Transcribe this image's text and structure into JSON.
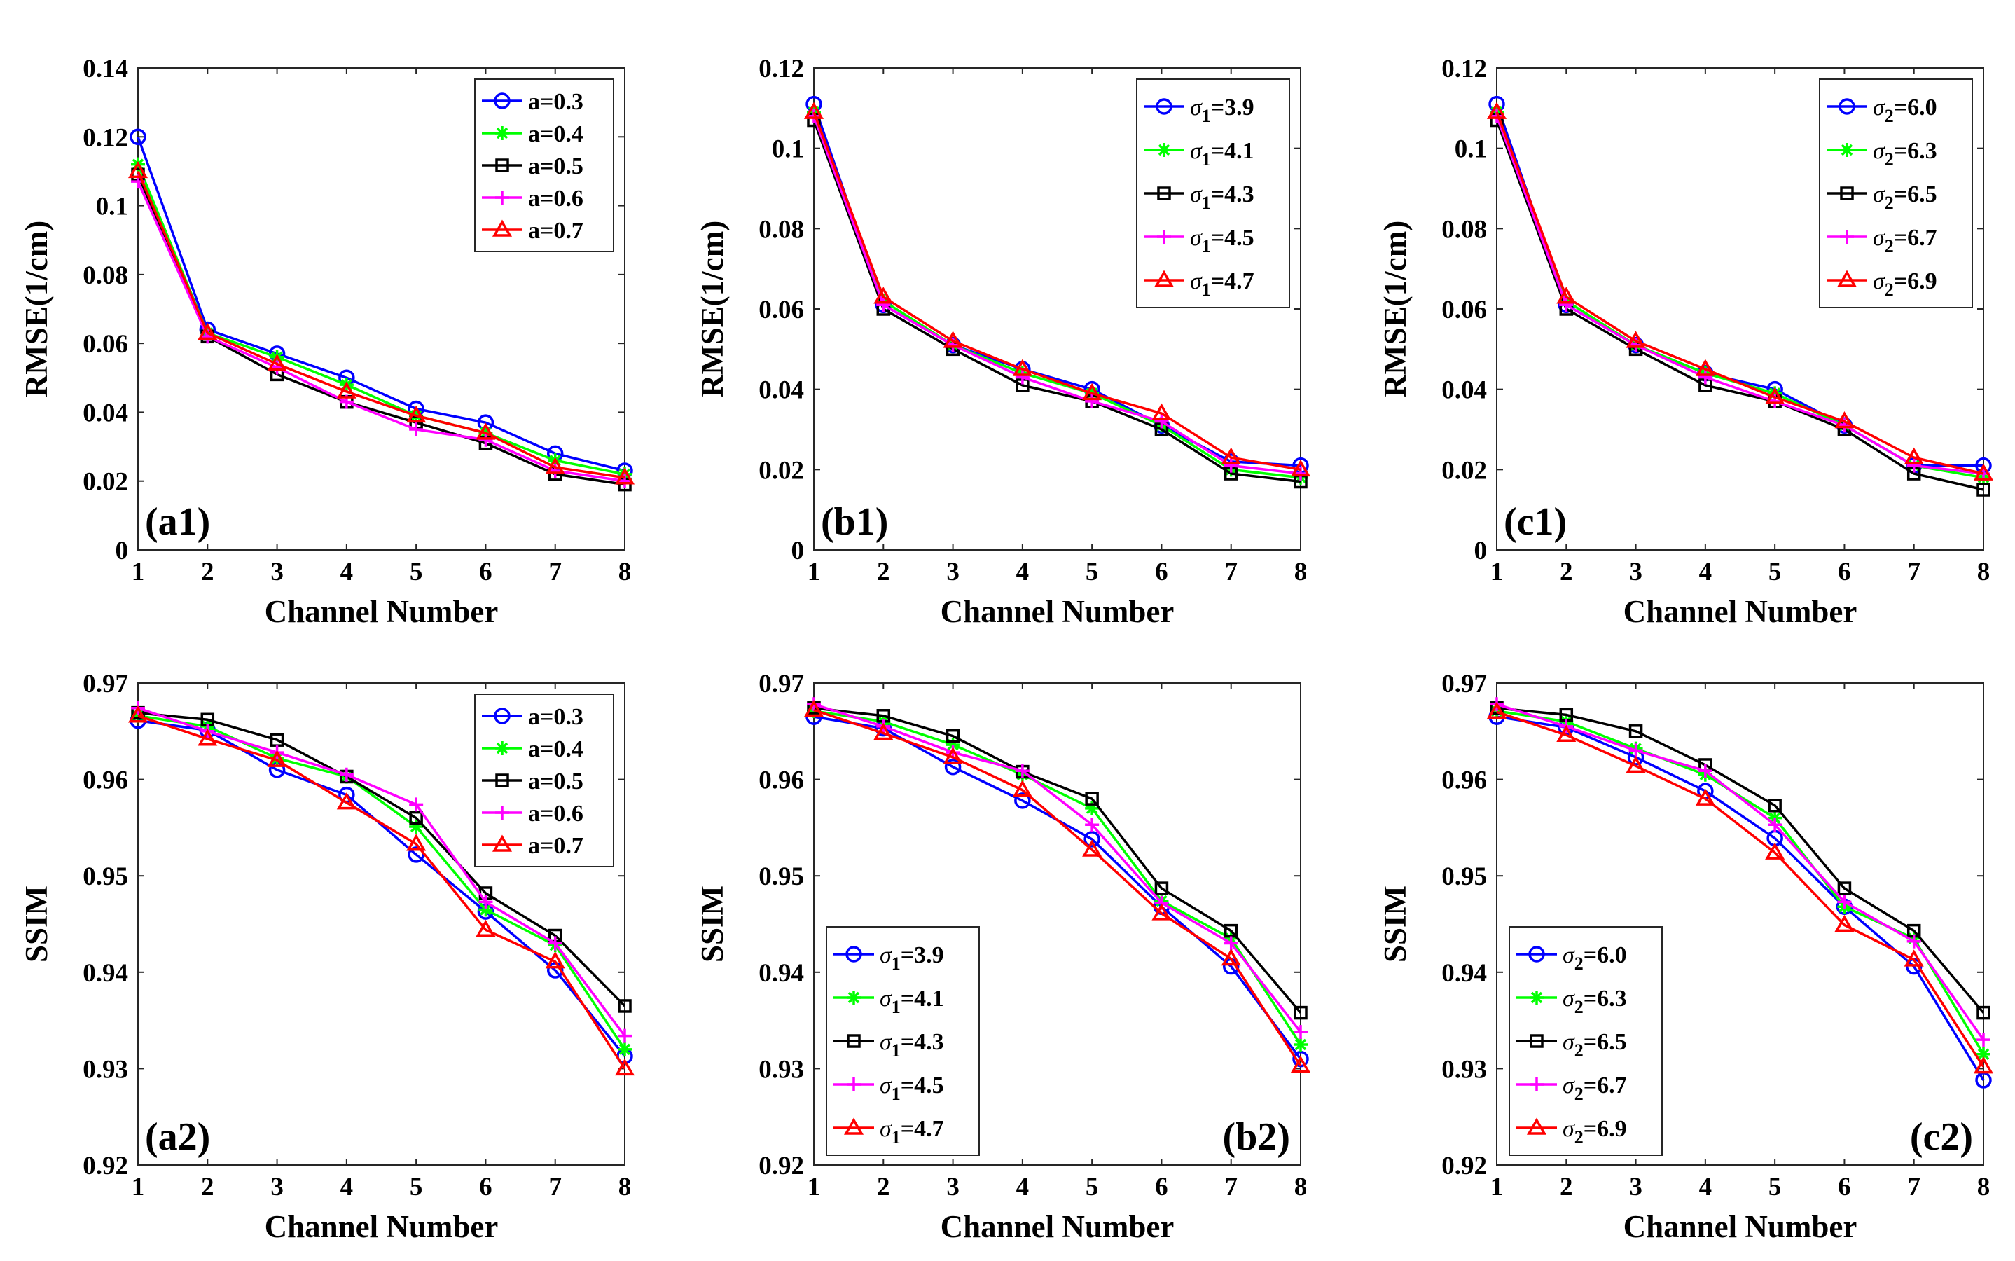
{
  "chart_data": [
    {
      "id": "a1",
      "type": "line",
      "panel_label": "(a1)",
      "xlabel": "Channel Number",
      "ylabel": "RMSE(1/cm)",
      "x": [
        1,
        2,
        3,
        4,
        5,
        6,
        7,
        8
      ],
      "xlim": [
        1,
        8
      ],
      "ylim": [
        0,
        0.14
      ],
      "yticks": [
        "0",
        "0.02",
        "0.04",
        "0.06",
        "0.08",
        "0.1",
        "0.12",
        "0.14"
      ],
      "legend_position": "top-right",
      "series": [
        {
          "name_prefix": "a",
          "name_sub": "",
          "name_value": "=0.3",
          "values": [
            0.12,
            0.064,
            0.057,
            0.05,
            0.041,
            0.037,
            0.028,
            0.023
          ]
        },
        {
          "name_prefix": "a",
          "name_sub": "",
          "name_value": "=0.4",
          "values": [
            0.112,
            0.063,
            0.056,
            0.048,
            0.039,
            0.034,
            0.026,
            0.022
          ]
        },
        {
          "name_prefix": "a",
          "name_sub": "",
          "name_value": "=0.5",
          "values": [
            0.109,
            0.062,
            0.051,
            0.043,
            0.037,
            0.031,
            0.022,
            0.019
          ]
        },
        {
          "name_prefix": "a",
          "name_sub": "",
          "name_value": "=0.6",
          "values": [
            0.107,
            0.062,
            0.053,
            0.043,
            0.035,
            0.032,
            0.023,
            0.02
          ]
        },
        {
          "name_prefix": "a",
          "name_sub": "",
          "name_value": "=0.7",
          "values": [
            0.11,
            0.063,
            0.054,
            0.046,
            0.039,
            0.034,
            0.024,
            0.021
          ]
        }
      ]
    },
    {
      "id": "b1",
      "type": "line",
      "panel_label": "(b1)",
      "xlabel": "Channel Number",
      "ylabel": "RMSE(1/cm)",
      "x": [
        1,
        2,
        3,
        4,
        5,
        6,
        7,
        8
      ],
      "xlim": [
        1,
        8
      ],
      "ylim": [
        0,
        0.12
      ],
      "yticks": [
        "0",
        "0.02",
        "0.04",
        "0.06",
        "0.08",
        "0.1",
        "0.12"
      ],
      "legend_position": "top-right",
      "series": [
        {
          "name_prefix": "σ",
          "name_sub": "1",
          "name_value": "=3.9",
          "values": [
            0.111,
            0.061,
            0.051,
            0.045,
            0.04,
            0.031,
            0.022,
            0.021
          ]
        },
        {
          "name_prefix": "σ",
          "name_sub": "1",
          "name_value": "=4.1",
          "values": [
            0.109,
            0.062,
            0.051,
            0.044,
            0.039,
            0.031,
            0.02,
            0.018
          ]
        },
        {
          "name_prefix": "σ",
          "name_sub": "1",
          "name_value": "=4.3",
          "values": [
            0.107,
            0.06,
            0.05,
            0.041,
            0.037,
            0.03,
            0.019,
            0.017
          ]
        },
        {
          "name_prefix": "σ",
          "name_sub": "1",
          "name_value": "=4.5",
          "values": [
            0.108,
            0.061,
            0.051,
            0.043,
            0.037,
            0.032,
            0.021,
            0.019
          ]
        },
        {
          "name_prefix": "σ",
          "name_sub": "1",
          "name_value": "=4.7",
          "values": [
            0.109,
            0.063,
            0.052,
            0.045,
            0.039,
            0.034,
            0.023,
            0.02
          ]
        }
      ]
    },
    {
      "id": "c1",
      "type": "line",
      "panel_label": "(c1)",
      "xlabel": "Channel Number",
      "ylabel": "RMSE(1/cm)",
      "x": [
        1,
        2,
        3,
        4,
        5,
        6,
        7,
        8
      ],
      "xlim": [
        1,
        8
      ],
      "ylim": [
        0,
        0.12
      ],
      "yticks": [
        "0",
        "0.02",
        "0.04",
        "0.06",
        "0.08",
        "0.1",
        "0.12"
      ],
      "legend_position": "top-right",
      "series": [
        {
          "name_prefix": "σ",
          "name_sub": "2",
          "name_value": "=6.0",
          "values": [
            0.111,
            0.061,
            0.051,
            0.044,
            0.04,
            0.031,
            0.021,
            0.021
          ]
        },
        {
          "name_prefix": "σ",
          "name_sub": "2",
          "name_value": "=6.3",
          "values": [
            0.109,
            0.062,
            0.051,
            0.044,
            0.039,
            0.031,
            0.021,
            0.018
          ]
        },
        {
          "name_prefix": "σ",
          "name_sub": "2",
          "name_value": "=6.5",
          "values": [
            0.107,
            0.06,
            0.05,
            0.041,
            0.037,
            0.03,
            0.019,
            0.015
          ]
        },
        {
          "name_prefix": "σ",
          "name_sub": "2",
          "name_value": "=6.7",
          "values": [
            0.108,
            0.061,
            0.051,
            0.043,
            0.037,
            0.031,
            0.021,
            0.019
          ]
        },
        {
          "name_prefix": "σ",
          "name_sub": "2",
          "name_value": "=6.9",
          "values": [
            0.109,
            0.063,
            0.052,
            0.045,
            0.038,
            0.032,
            0.023,
            0.019
          ]
        }
      ]
    },
    {
      "id": "a2",
      "type": "line",
      "panel_label": "(a2)",
      "xlabel": "Channel Number",
      "ylabel": "SSIM",
      "x": [
        1,
        2,
        3,
        4,
        5,
        6,
        7,
        8
      ],
      "xlim": [
        1,
        8
      ],
      "ylim": [
        0.92,
        0.97
      ],
      "yticks": [
        "0.92",
        "0.93",
        "0.94",
        "0.95",
        "0.96",
        "0.97"
      ],
      "legend_position": "top-right",
      "series": [
        {
          "name_prefix": "a",
          "name_sub": "",
          "name_value": "=0.3",
          "values": [
            0.9661,
            0.9651,
            0.961,
            0.9584,
            0.9522,
            0.9463,
            0.9402,
            0.9313
          ]
        },
        {
          "name_prefix": "a",
          "name_sub": "",
          "name_value": "=0.4",
          "values": [
            0.9666,
            0.9655,
            0.9622,
            0.9603,
            0.9551,
            0.9465,
            0.9428,
            0.932
          ]
        },
        {
          "name_prefix": "a",
          "name_sub": "",
          "name_value": "=0.5",
          "values": [
            0.9669,
            0.9662,
            0.9641,
            0.9603,
            0.956,
            0.9482,
            0.9438,
            0.9365
          ]
        },
        {
          "name_prefix": "a",
          "name_sub": "",
          "name_value": "=0.6",
          "values": [
            0.9674,
            0.965,
            0.9628,
            0.9605,
            0.9574,
            0.9473,
            0.943,
            0.9334
          ]
        },
        {
          "name_prefix": "a",
          "name_sub": "",
          "name_value": "=0.7",
          "values": [
            0.9666,
            0.9642,
            0.962,
            0.9576,
            0.9533,
            0.9444,
            0.9411,
            0.93
          ]
        }
      ]
    },
    {
      "id": "b2",
      "type": "line",
      "panel_label": "(b2)",
      "xlabel": "Channel Number",
      "ylabel": "SSIM",
      "x": [
        1,
        2,
        3,
        4,
        5,
        6,
        7,
        8
      ],
      "xlim": [
        1,
        8
      ],
      "ylim": [
        0.92,
        0.97
      ],
      "yticks": [
        "0.92",
        "0.93",
        "0.94",
        "0.95",
        "0.96",
        "0.97"
      ],
      "legend_position": "bottom-left",
      "series": [
        {
          "name_prefix": "σ",
          "name_sub": "1",
          "name_value": "=3.9",
          "values": [
            0.9665,
            0.9653,
            0.9613,
            0.9578,
            0.9538,
            0.9468,
            0.9406,
            0.931
          ]
        },
        {
          "name_prefix": "σ",
          "name_sub": "1",
          "name_value": "=4.1",
          "values": [
            0.9671,
            0.966,
            0.9636,
            0.9605,
            0.957,
            0.9474,
            0.9435,
            0.9325
          ]
        },
        {
          "name_prefix": "σ",
          "name_sub": "1",
          "name_value": "=4.3",
          "values": [
            0.9674,
            0.9666,
            0.9645,
            0.9608,
            0.958,
            0.9487,
            0.9443,
            0.9358
          ]
        },
        {
          "name_prefix": "σ",
          "name_sub": "1",
          "name_value": "=4.5",
          "values": [
            0.9678,
            0.9655,
            0.9628,
            0.9609,
            0.9553,
            0.9472,
            0.943,
            0.9338
          ]
        },
        {
          "name_prefix": "σ",
          "name_sub": "1",
          "name_value": "=4.7",
          "values": [
            0.9672,
            0.9648,
            0.9623,
            0.9589,
            0.9527,
            0.9461,
            0.9414,
            0.9303
          ]
        }
      ]
    },
    {
      "id": "c2",
      "type": "line",
      "panel_label": "(c2)",
      "xlabel": "Channel Number",
      "ylabel": "SSIM",
      "x": [
        1,
        2,
        3,
        4,
        5,
        6,
        7,
        8
      ],
      "xlim": [
        1,
        8
      ],
      "ylim": [
        0.92,
        0.97
      ],
      "yticks": [
        "0.92",
        "0.93",
        "0.94",
        "0.95",
        "0.96",
        "0.97"
      ],
      "legend_position": "bottom-left",
      "series": [
        {
          "name_prefix": "σ",
          "name_sub": "2",
          "name_value": "=6.0",
          "values": [
            0.9665,
            0.9654,
            0.9623,
            0.9588,
            0.9539,
            0.9468,
            0.9406,
            0.9288
          ]
        },
        {
          "name_prefix": "σ",
          "name_sub": "2",
          "name_value": "=6.3",
          "values": [
            0.9671,
            0.966,
            0.9632,
            0.9605,
            0.956,
            0.9468,
            0.9435,
            0.9315
          ]
        },
        {
          "name_prefix": "σ",
          "name_sub": "2",
          "name_value": "=6.5",
          "values": [
            0.9674,
            0.9667,
            0.965,
            0.9615,
            0.9573,
            0.9487,
            0.9443,
            0.9358
          ]
        },
        {
          "name_prefix": "σ",
          "name_sub": "2",
          "name_value": "=6.7",
          "values": [
            0.9678,
            0.9655,
            0.963,
            0.9609,
            0.9553,
            0.9473,
            0.9432,
            0.933
          ]
        },
        {
          "name_prefix": "σ",
          "name_sub": "2",
          "name_value": "=6.9",
          "values": [
            0.967,
            0.9646,
            0.9614,
            0.958,
            0.9524,
            0.9449,
            0.9413,
            0.9302
          ]
        }
      ]
    }
  ],
  "series_styles": [
    {
      "color": "#0000ff",
      "marker": "circle-icon"
    },
    {
      "color": "#00ff00",
      "marker": "asterisk-icon"
    },
    {
      "color": "#000000",
      "marker": "square-icon"
    },
    {
      "color": "#ff00ff",
      "marker": "plus-icon"
    },
    {
      "color": "#ff0000",
      "marker": "triangle-icon"
    }
  ]
}
